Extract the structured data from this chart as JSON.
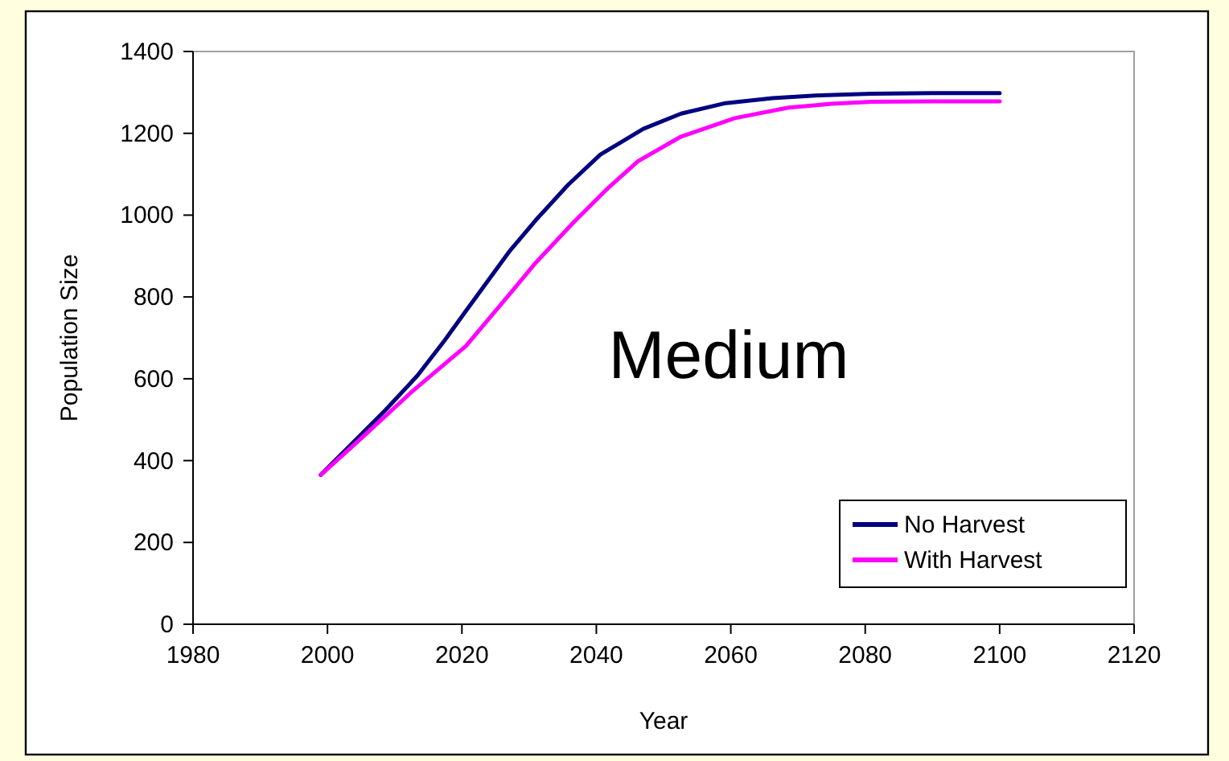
{
  "chart_data": {
    "type": "line",
    "xlabel": "Year",
    "ylabel": "Population Size",
    "annotations": [
      "Medium"
    ],
    "xlim": [
      1980,
      2120
    ],
    "xticks": [
      1980,
      2000,
      2020,
      2040,
      2060,
      2080,
      2100,
      2120
    ],
    "ylim": [
      0,
      1400
    ],
    "yticks": [
      0,
      200,
      400,
      600,
      800,
      1000,
      1200,
      1400
    ],
    "legend": "bottom right",
    "marker": "none",
    "line_style": "solid",
    "grid": false,
    "series": [
      {
        "name": "No Harvest",
        "color": "#000080",
        "x": [
          1999,
          2004.6,
          2008.6,
          2013.4,
          2017.4,
          2020.6,
          2027,
          2031,
          2035.8,
          2040.6,
          2047,
          2052.6,
          2059,
          2066.2,
          2073.4,
          2081,
          2090,
          2100
        ],
        "values": [
          365,
          457,
          523,
          608,
          693,
          766,
          910,
          988,
          1074,
          1148,
          1211,
          1248,
          1273,
          1286,
          1293,
          1297,
          1298,
          1298
        ]
      },
      {
        "name": "With Harvest",
        "color": "#ff00ff",
        "x": [
          1999,
          2004.6,
          2012.6,
          2020.6,
          2027,
          2031,
          2036.6,
          2041.4,
          2046.2,
          2052.6,
          2060.6,
          2068.6,
          2075,
          2081,
          2090,
          2100
        ],
        "values": [
          365,
          448,
          569,
          680,
          805,
          884,
          982,
          1061,
          1132,
          1192,
          1237,
          1263,
          1272,
          1277,
          1278,
          1278
        ]
      }
    ]
  }
}
